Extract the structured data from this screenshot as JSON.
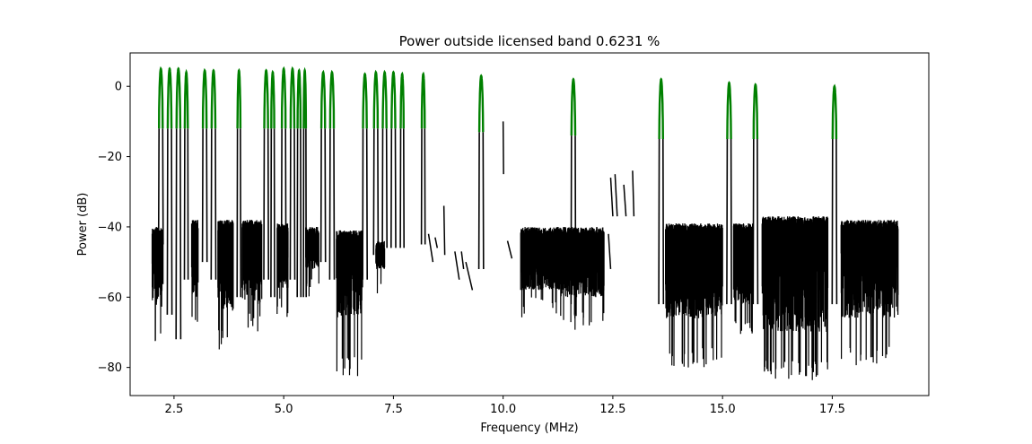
{
  "chart_data": {
    "type": "line",
    "title": "Power outside licensed band 0.6231 %",
    "xlabel": "Frequency (MHz)",
    "ylabel": "Power (dB)",
    "xlim": [
      1.5,
      19.7
    ],
    "ylim": [
      -88,
      9.5
    ],
    "xticks": [
      2.5,
      5.0,
      7.5,
      10.0,
      12.5,
      15.0,
      17.5
    ],
    "xtick_labels": [
      "2.5",
      "5.0",
      "7.5",
      "10.0",
      "12.5",
      "15.0",
      "17.5"
    ],
    "yticks": [
      0,
      -20,
      -40,
      -60,
      -80
    ],
    "ytick_labels": [
      "0",
      "−20",
      "−40",
      "−60",
      "−80"
    ],
    "grid": false,
    "colors": {
      "outside_band": "#000000",
      "licensed_band": "#008000"
    },
    "series": [
      {
        "color": "#000000",
        "noise_segments": [
          {
            "x": [
              2.0,
              2.25
            ],
            "floor": [
              -45,
              -40
            ],
            "troughs": [
              -74,
              -63
            ]
          },
          {
            "x": [
              2.9,
              3.05
            ],
            "floor": [
              -45,
              -38
            ],
            "troughs": [
              -68,
              -60
            ]
          },
          {
            "x": [
              3.5,
              3.85
            ],
            "floor": [
              -45,
              -38
            ],
            "troughs": [
              -75,
              -64
            ]
          },
          {
            "x": [
              4.05,
              4.5
            ],
            "floor": [
              -45,
              -38
            ],
            "troughs": [
              -70,
              -62
            ]
          },
          {
            "x": [
              4.85,
              5.1
            ],
            "floor": [
              -45,
              -39
            ],
            "troughs": [
              -66,
              -58
            ]
          },
          {
            "x": [
              5.5,
              5.8
            ],
            "floor": [
              -45,
              -40
            ],
            "troughs": [
              -60,
              -52
            ]
          },
          {
            "x": [
              6.2,
              6.8
            ],
            "floor": [
              -48,
              -41
            ],
            "troughs": [
              -83,
              -66
            ]
          },
          {
            "x": [
              7.1,
              7.3
            ],
            "floor": [
              -50,
              -44
            ],
            "troughs": [
              -60,
              -52
            ]
          },
          {
            "x": [
              10.4,
              11.3
            ],
            "floor": [
              -49,
              -40
            ],
            "troughs": [
              -66,
              -58
            ]
          },
          {
            "x": [
              11.3,
              12.3
            ],
            "floor": [
              -50,
              -40
            ],
            "troughs": [
              -70,
              -60
            ]
          },
          {
            "x": [
              13.7,
              15.0
            ],
            "floor": [
              -50,
              -39
            ],
            "troughs": [
              -80,
              -66
            ]
          },
          {
            "x": [
              15.25,
              15.7
            ],
            "floor": [
              -48,
              -39
            ],
            "troughs": [
              -72,
              -62
            ]
          },
          {
            "x": [
              15.9,
              17.4
            ],
            "floor": [
              -47,
              -37
            ],
            "troughs": [
              -84,
              -70
            ]
          },
          {
            "x": [
              17.7,
              19.0
            ],
            "floor": [
              -47,
              -38
            ],
            "troughs": [
              -80,
              -66
            ]
          }
        ],
        "scatter_pieces": [
          {
            "x": [
              8.3,
              8.4
            ],
            "y": [
              -42,
              -50
            ]
          },
          {
            "x": [
              8.45,
              8.5
            ],
            "y": [
              -43,
              -46
            ]
          },
          {
            "x": [
              8.65,
              8.67
            ],
            "y": [
              -34,
              -48
            ]
          },
          {
            "x": [
              8.9,
              9.0
            ],
            "y": [
              -47,
              -55
            ]
          },
          {
            "x": [
              9.05,
              9.1
            ],
            "y": [
              -47,
              -52
            ]
          },
          {
            "x": [
              9.15,
              9.3
            ],
            "y": [
              -50,
              -58
            ]
          },
          {
            "x": [
              10.0,
              10.01
            ],
            "y": [
              -10,
              -25
            ]
          },
          {
            "x": [
              10.1,
              10.2
            ],
            "y": [
              -44,
              -49
            ]
          },
          {
            "x": [
              12.45,
              12.5
            ],
            "y": [
              -26,
              -37
            ]
          },
          {
            "x": [
              12.55,
              12.6
            ],
            "y": [
              -25,
              -37
            ]
          },
          {
            "x": [
              12.75,
              12.8
            ],
            "y": [
              -28,
              -37
            ]
          },
          {
            "x": [
              12.95,
              12.98
            ],
            "y": [
              -24,
              -37
            ]
          },
          {
            "x": [
              12.4,
              12.45
            ],
            "y": [
              -42,
              -52
            ]
          }
        ]
      },
      {
        "color": "#008000",
        "channels": [
          {
            "center": 2.2,
            "peak": 5,
            "edge": -12,
            "width": 0.1
          },
          {
            "center": 2.4,
            "peak": 5,
            "edge": -12,
            "width": 0.1
          },
          {
            "center": 2.6,
            "peak": 5,
            "edge": -12,
            "width": 0.1
          },
          {
            "center": 2.78,
            "peak": 4,
            "edge": -12,
            "width": 0.08
          },
          {
            "center": 3.2,
            "peak": 4.5,
            "edge": -12,
            "width": 0.1
          },
          {
            "center": 3.4,
            "peak": 4.5,
            "edge": -12,
            "width": 0.1
          },
          {
            "center": 3.98,
            "peak": 4.5,
            "edge": -12,
            "width": 0.08
          },
          {
            "center": 4.6,
            "peak": 4.5,
            "edge": -12,
            "width": 0.1
          },
          {
            "center": 4.75,
            "peak": 4,
            "edge": -12,
            "width": 0.08
          },
          {
            "center": 5.0,
            "peak": 5,
            "edge": -12,
            "width": 0.1
          },
          {
            "center": 5.2,
            "peak": 5,
            "edge": -12,
            "width": 0.1
          },
          {
            "center": 5.35,
            "peak": 4.5,
            "edge": -12,
            "width": 0.08
          },
          {
            "center": 5.48,
            "peak": 4.5,
            "edge": -12,
            "width": 0.06
          },
          {
            "center": 5.9,
            "peak": 4,
            "edge": -12,
            "width": 0.1
          },
          {
            "center": 6.1,
            "peak": 4,
            "edge": -12,
            "width": 0.1
          },
          {
            "center": 6.85,
            "peak": 3.5,
            "edge": -12,
            "width": 0.1
          },
          {
            "center": 7.1,
            "peak": 4,
            "edge": -12,
            "width": 0.1
          },
          {
            "center": 7.3,
            "peak": 4,
            "edge": -12,
            "width": 0.1
          },
          {
            "center": 7.5,
            "peak": 4,
            "edge": -12,
            "width": 0.1
          },
          {
            "center": 7.7,
            "peak": 3.5,
            "edge": -12,
            "width": 0.08
          },
          {
            "center": 8.18,
            "peak": 3.5,
            "edge": -12,
            "width": 0.08
          },
          {
            "center": 9.5,
            "peak": 3,
            "edge": -13,
            "width": 0.1
          },
          {
            "center": 11.6,
            "peak": 2,
            "edge": -14,
            "width": 0.1
          },
          {
            "center": 13.6,
            "peak": 2,
            "edge": -15,
            "width": 0.1
          },
          {
            "center": 15.15,
            "peak": 1,
            "edge": -15,
            "width": 0.1
          },
          {
            "center": 15.75,
            "peak": 0.5,
            "edge": -15,
            "width": 0.1
          },
          {
            "center": 17.55,
            "peak": 0,
            "edge": -15,
            "width": 0.1
          }
        ],
        "channel_bases": [
          {
            "center": 2.2,
            "base": -45
          },
          {
            "center": 2.4,
            "base": -65
          },
          {
            "center": 2.6,
            "base": -72
          },
          {
            "center": 2.78,
            "base": -55
          },
          {
            "center": 3.2,
            "base": -50
          },
          {
            "center": 3.4,
            "base": -55
          },
          {
            "center": 3.98,
            "base": -60
          },
          {
            "center": 4.6,
            "base": -55
          },
          {
            "center": 4.75,
            "base": -60
          },
          {
            "center": 5.0,
            "base": -55
          },
          {
            "center": 5.2,
            "base": -55
          },
          {
            "center": 5.35,
            "base": -60
          },
          {
            "center": 5.48,
            "base": -60
          },
          {
            "center": 5.9,
            "base": -50
          },
          {
            "center": 6.1,
            "base": -55
          },
          {
            "center": 6.85,
            "base": -55
          },
          {
            "center": 7.1,
            "base": -48
          },
          {
            "center": 7.3,
            "base": -46
          },
          {
            "center": 7.5,
            "base": -46
          },
          {
            "center": 7.7,
            "base": -46
          },
          {
            "center": 8.18,
            "base": -45
          },
          {
            "center": 9.5,
            "base": -52
          },
          {
            "center": 11.6,
            "base": -62
          },
          {
            "center": 13.6,
            "base": -62
          },
          {
            "center": 15.15,
            "base": -62
          },
          {
            "center": 15.75,
            "base": -62
          },
          {
            "center": 17.55,
            "base": -62
          }
        ]
      }
    ]
  }
}
